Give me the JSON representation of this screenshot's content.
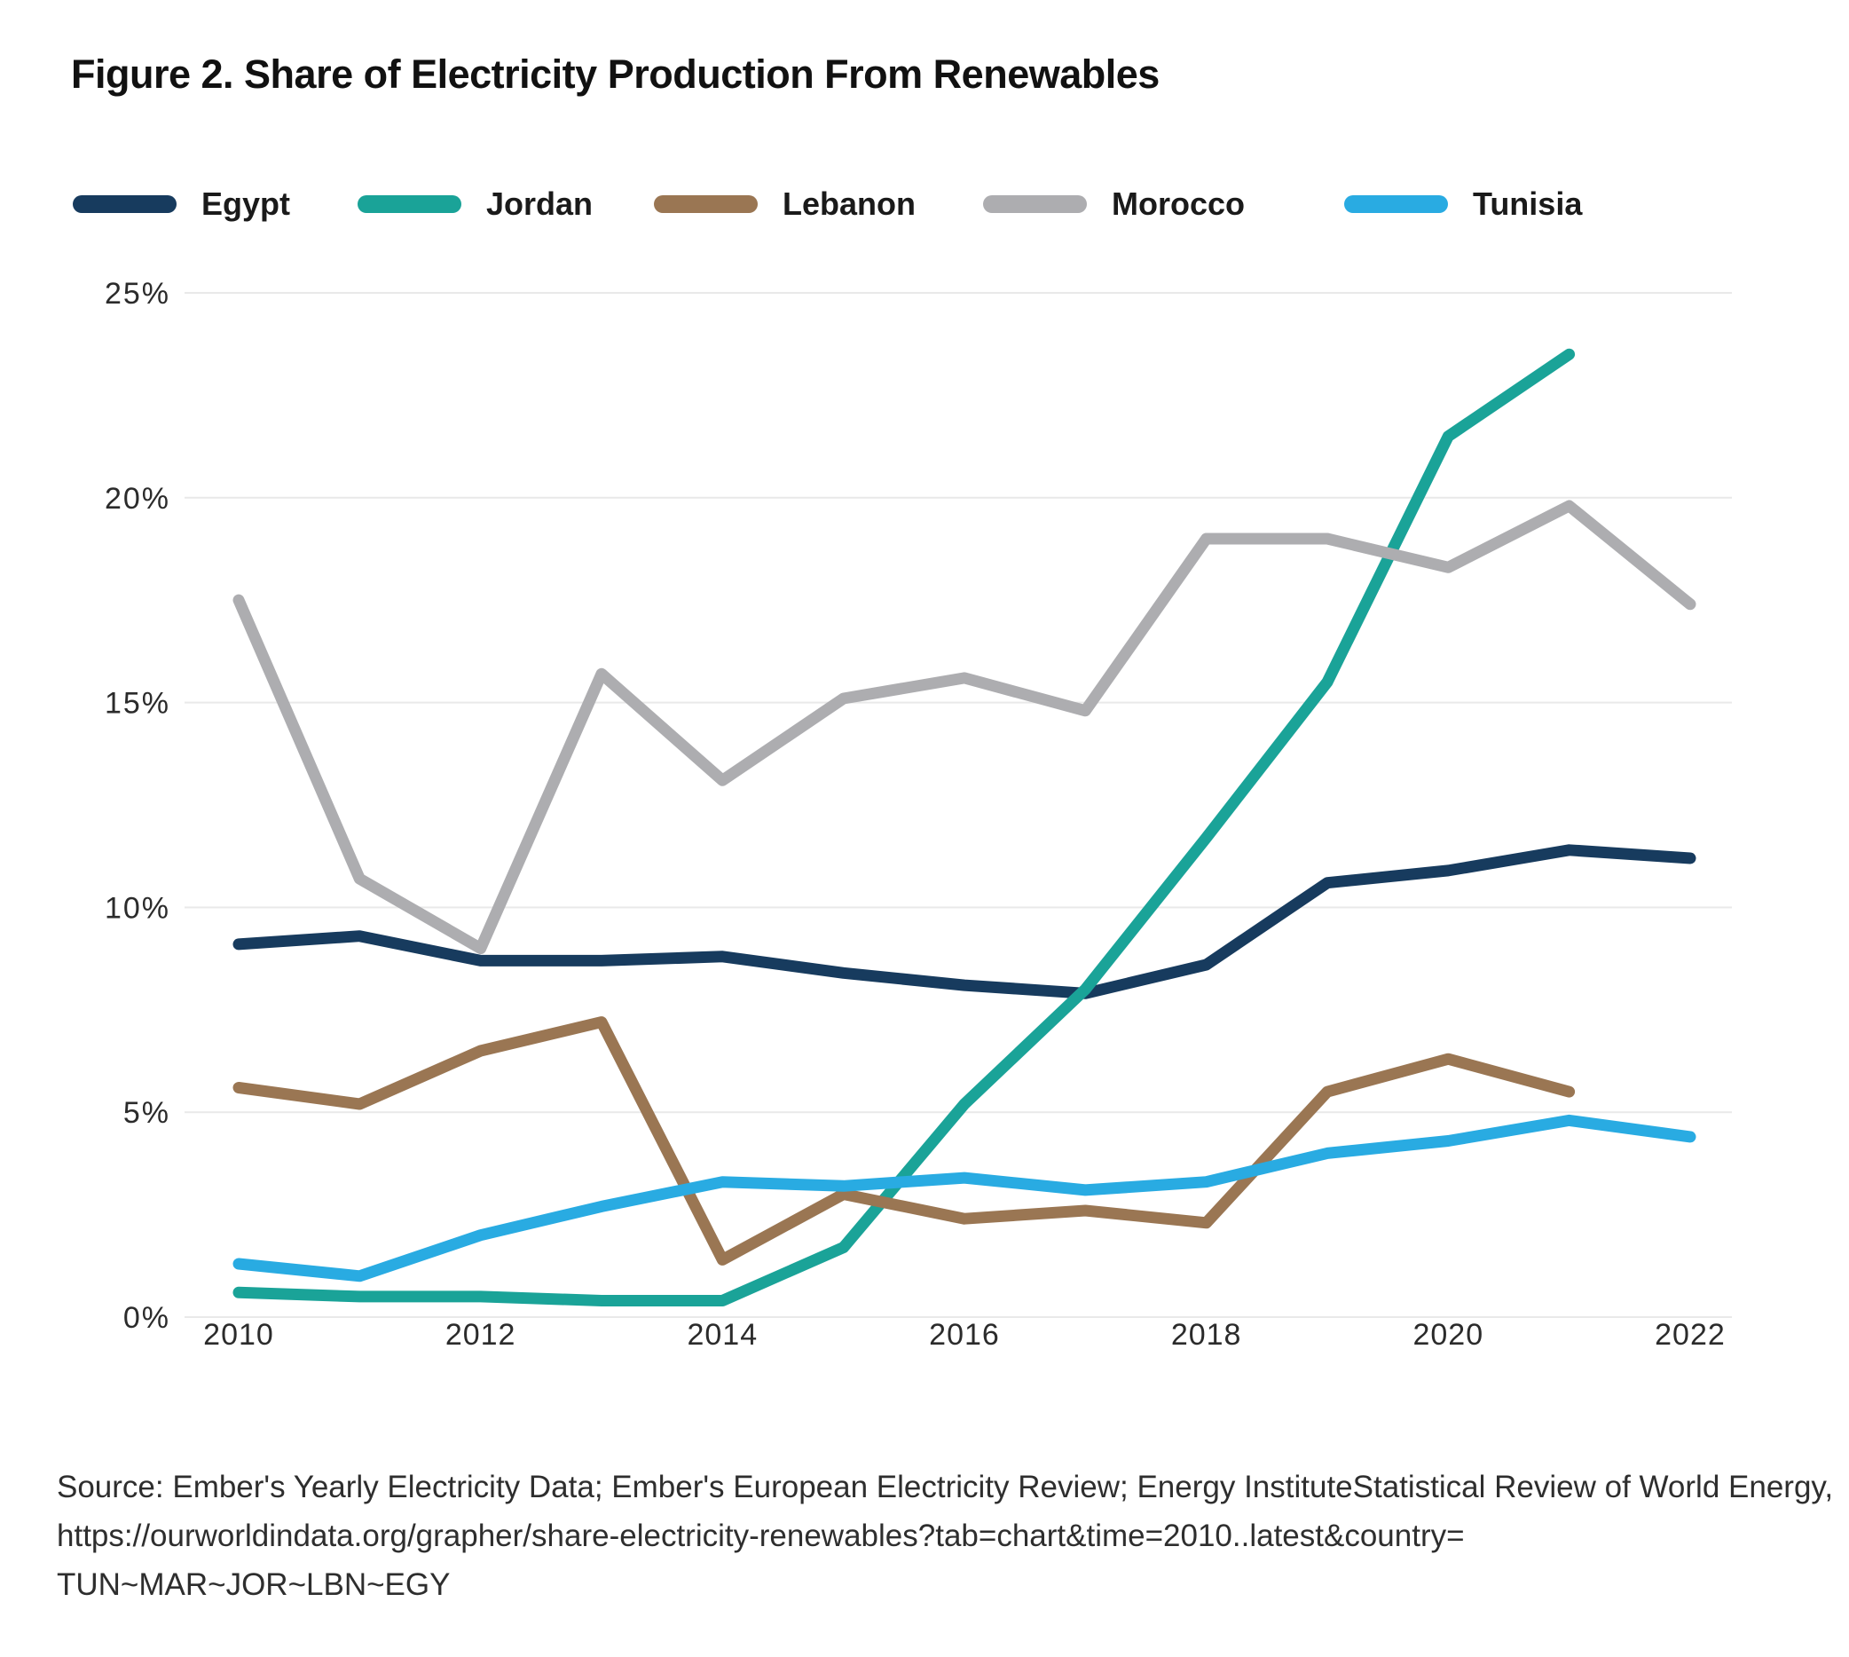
{
  "figure": {
    "title": "Figure 2. Share of Electricity Production From Renewables",
    "source_lines": [
      "Source: Ember's Yearly Electricity Data; Ember's European Electricity Review; Energy InstituteStatistical Review of World Energy,",
      "https://ourworldindata.org/grapher/share-electricity-renewables?tab=chart&time=2010..latest&country=",
      "TUN~MAR~JOR~LBN~EGY"
    ]
  },
  "chart_data": {
    "type": "line",
    "title": "Figure 2. Share of Electricity Production From Renewables",
    "x": [
      2010,
      2011,
      2012,
      2013,
      2014,
      2015,
      2016,
      2017,
      2018,
      2019,
      2020,
      2021,
      2022
    ],
    "xtick_labels": [
      "2010",
      "2012",
      "2014",
      "2016",
      "2018",
      "2020",
      "2022"
    ],
    "xtick_values": [
      2010,
      2012,
      2014,
      2016,
      2018,
      2020,
      2022
    ],
    "ytick_values": [
      0,
      5,
      10,
      15,
      20,
      25
    ],
    "ytick_labels": [
      "0%",
      "5%",
      "10%",
      "15%",
      "20%",
      "25%"
    ],
    "ylim": [
      0,
      25
    ],
    "xlabel": "",
    "ylabel": "",
    "grid": true,
    "legend_position": "top",
    "background_color": "#ffffff",
    "gridline_color": "#e9e9e9",
    "series": [
      {
        "name": "Egypt",
        "color": "#173B5E",
        "values": [
          9.1,
          9.3,
          8.7,
          8.7,
          8.8,
          8.4,
          8.1,
          7.9,
          8.6,
          10.6,
          10.9,
          11.4,
          11.2
        ]
      },
      {
        "name": "Jordan",
        "color": "#1AA398",
        "values": [
          0.6,
          0.5,
          0.5,
          0.4,
          0.4,
          1.7,
          5.2,
          8.0,
          11.7,
          15.5,
          21.5,
          23.5
        ]
      },
      {
        "name": "Lebanon",
        "color": "#9A7653",
        "values": [
          5.6,
          5.2,
          6.5,
          7.2,
          1.4,
          3.0,
          2.4,
          2.6,
          2.3,
          5.5,
          6.3,
          5.5
        ]
      },
      {
        "name": "Morocco",
        "color": "#ADADB0",
        "values": [
          17.5,
          10.7,
          9.0,
          15.7,
          13.1,
          15.1,
          15.6,
          14.8,
          19.0,
          19.0,
          18.3,
          19.8,
          17.4
        ]
      },
      {
        "name": "Tunisia",
        "color": "#29ABE2",
        "values": [
          1.3,
          1.0,
          2.0,
          2.7,
          3.3,
          3.2,
          3.4,
          3.1,
          3.3,
          4.0,
          4.3,
          4.8,
          4.4
        ]
      }
    ]
  }
}
